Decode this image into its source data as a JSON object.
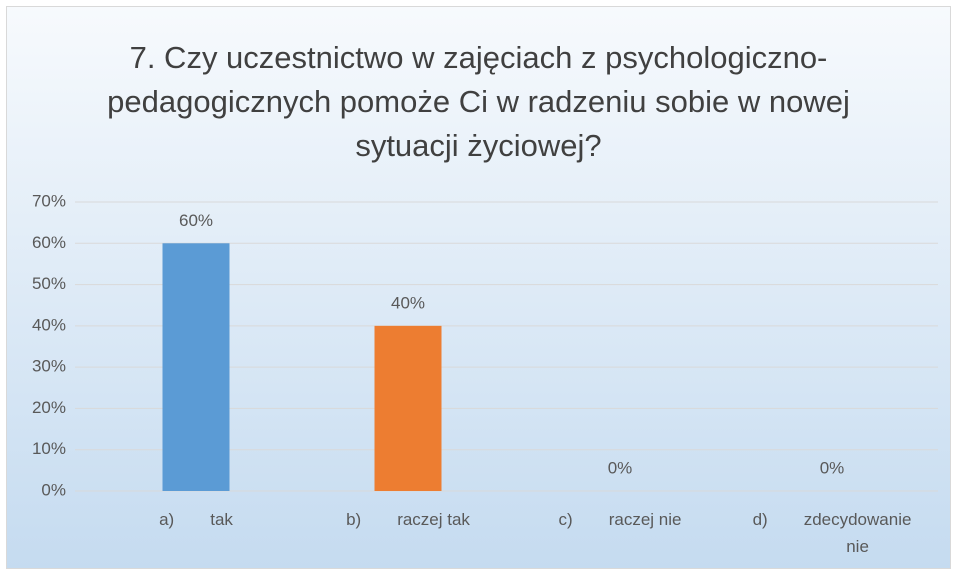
{
  "chart_data": {
    "type": "bar",
    "title": "7. Czy uczestnictwo w zajęciach z psychologiczno-pedagogicznych pomoże Ci w radzeniu sobie w nowej sytuacji życiowej?",
    "categories": [
      "a)      tak",
      "b)      raczej tak",
      "c)      raczej nie",
      "d)      zdecydowanie nie"
    ],
    "values": [
      60,
      40,
      0,
      0
    ],
    "value_labels": [
      "60%",
      "40%",
      "0%",
      "0%"
    ],
    "colors": [
      "#5b9bd5",
      "#ed7d31",
      "#a5a5a5",
      "#ffc000"
    ],
    "ylim": [
      0,
      70
    ],
    "yticks": [
      {
        "value": 0,
        "label": "0%"
      },
      {
        "value": 10,
        "label": "10%"
      },
      {
        "value": 20,
        "label": "20%"
      },
      {
        "value": 30,
        "label": "30%"
      },
      {
        "value": 40,
        "label": "40%"
      },
      {
        "value": 50,
        "label": "50%"
      },
      {
        "value": 60,
        "label": "60%"
      },
      {
        "value": 70,
        "label": "70%"
      }
    ],
    "grid": true
  }
}
